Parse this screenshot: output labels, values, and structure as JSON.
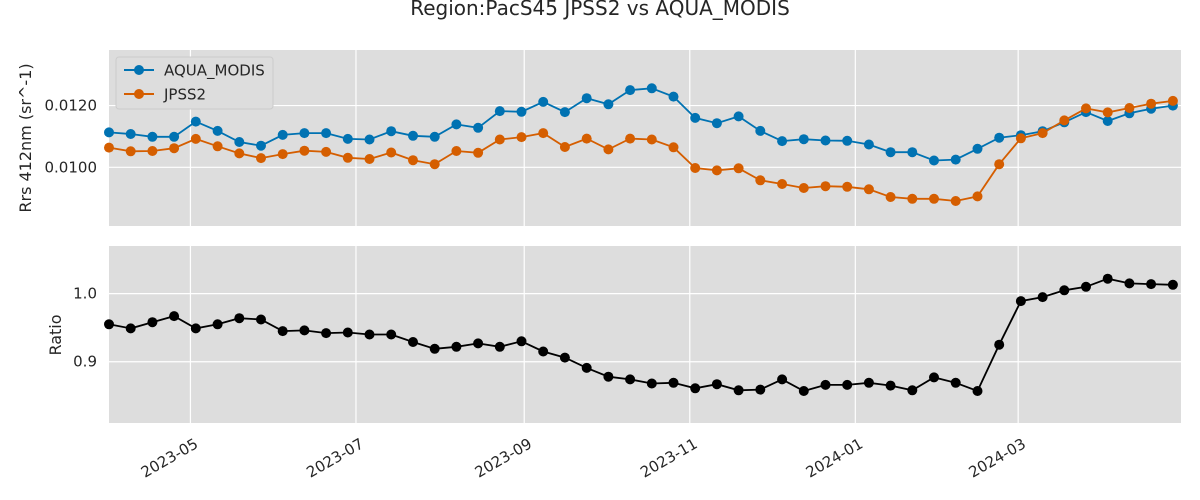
{
  "chart_data": [
    {
      "type": "line",
      "title": "Region:PacS45 JPSS2 vs AQUA_MODIS",
      "ylabel": "Rrs 412nm (sr^-1)",
      "xlabel": "",
      "xlim": [
        "2023-04-01",
        "2024-04-30"
      ],
      "ylim": [
        0.0081,
        0.0138
      ],
      "yticks": [
        0.01,
        0.012
      ],
      "ytick_labels": [
        "0.0100",
        "0.0120"
      ],
      "grid": true,
      "legend": "top-left",
      "x": [
        "2023-04-01",
        "2023-04-09",
        "2023-04-17",
        "2023-04-25",
        "2023-05-03",
        "2023-05-11",
        "2023-05-19",
        "2023-05-27",
        "2023-06-04",
        "2023-06-12",
        "2023-06-20",
        "2023-06-28",
        "2023-07-06",
        "2023-07-14",
        "2023-07-22",
        "2023-07-30",
        "2023-08-07",
        "2023-08-15",
        "2023-08-23",
        "2023-08-31",
        "2023-09-08",
        "2023-09-16",
        "2023-09-24",
        "2023-10-02",
        "2023-10-10",
        "2023-10-18",
        "2023-10-26",
        "2023-11-03",
        "2023-11-11",
        "2023-11-19",
        "2023-11-27",
        "2023-12-05",
        "2023-12-13",
        "2023-12-21",
        "2023-12-29",
        "2024-01-06",
        "2024-01-14",
        "2024-01-22",
        "2024-01-30",
        "2024-02-07",
        "2024-02-15",
        "2024-02-23",
        "2024-03-02",
        "2024-03-10",
        "2024-03-18",
        "2024-03-26",
        "2024-04-03",
        "2024-04-11",
        "2024-04-19",
        "2024-04-27"
      ],
      "series": [
        {
          "name": "AQUA_MODIS",
          "color": "#0072b2",
          "values": [
            0.01113,
            0.01108,
            0.01099,
            0.01099,
            0.01148,
            0.01118,
            0.01082,
            0.0107,
            0.01105,
            0.01111,
            0.01111,
            0.01092,
            0.0109,
            0.01117,
            0.01102,
            0.01099,
            0.01139,
            0.01128,
            0.01182,
            0.0118,
            0.01212,
            0.01179,
            0.01224,
            0.01204,
            0.0125,
            0.01256,
            0.01229,
            0.0116,
            0.01143,
            0.01165,
            0.01118,
            0.01085,
            0.01091,
            0.01087,
            0.01086,
            0.01074,
            0.01049,
            0.01049,
            0.01022,
            0.01025,
            0.0106,
            0.01096,
            0.01104,
            0.01117,
            0.01146,
            0.01179,
            0.0115,
            0.01175,
            0.0119,
            0.012
          ]
        },
        {
          "name": "JPSS2",
          "color": "#d55e00",
          "values": [
            0.01064,
            0.01052,
            0.01053,
            0.01062,
            0.01092,
            0.01068,
            0.01045,
            0.0103,
            0.01043,
            0.01054,
            0.0105,
            0.01031,
            0.01027,
            0.01048,
            0.01023,
            0.0101,
            0.01053,
            0.01047,
            0.0109,
            0.01098,
            0.01111,
            0.01066,
            0.01093,
            0.01058,
            0.01093,
            0.0109,
            0.01065,
            0.00998,
            0.0099,
            0.00997,
            0.00958,
            0.00946,
            0.00933,
            0.00939,
            0.00937,
            0.00929,
            0.00904,
            0.00898,
            0.00898,
            0.00891,
            0.00906,
            0.0101,
            0.01094,
            0.01111,
            0.01152,
            0.01191,
            0.01178,
            0.01192,
            0.01206,
            0.01215
          ]
        }
      ]
    },
    {
      "type": "line",
      "title": "",
      "ylabel": "Ratio",
      "xlabel": "",
      "xlim": [
        "2023-04-01",
        "2024-04-30"
      ],
      "ylim": [
        0.81,
        1.07
      ],
      "yticks": [
        0.9,
        1.0
      ],
      "ytick_labels": [
        "0.9",
        "1.0"
      ],
      "xticks": [
        "2023-05-01",
        "2023-07-01",
        "2023-09-01",
        "2023-11-01",
        "2024-01-01",
        "2024-03-01"
      ],
      "xtick_labels": [
        "2023-05",
        "2023-07",
        "2023-09",
        "2023-11",
        "2024-01",
        "2024-03"
      ],
      "grid": true,
      "x": [
        "2023-04-01",
        "2023-04-09",
        "2023-04-17",
        "2023-04-25",
        "2023-05-03",
        "2023-05-11",
        "2023-05-19",
        "2023-05-27",
        "2023-06-04",
        "2023-06-12",
        "2023-06-20",
        "2023-06-28",
        "2023-07-06",
        "2023-07-14",
        "2023-07-22",
        "2023-07-30",
        "2023-08-07",
        "2023-08-15",
        "2023-08-23",
        "2023-08-31",
        "2023-09-08",
        "2023-09-16",
        "2023-09-24",
        "2023-10-02",
        "2023-10-10",
        "2023-10-18",
        "2023-10-26",
        "2023-11-03",
        "2023-11-11",
        "2023-11-19",
        "2023-11-27",
        "2023-12-05",
        "2023-12-13",
        "2023-12-21",
        "2023-12-29",
        "2024-01-06",
        "2024-01-14",
        "2024-01-22",
        "2024-01-30",
        "2024-02-07",
        "2024-02-15",
        "2024-02-23",
        "2024-03-02",
        "2024-03-10",
        "2024-03-18",
        "2024-03-26",
        "2024-04-03",
        "2024-04-11",
        "2024-04-19",
        "2024-04-27"
      ],
      "series": [
        {
          "color": "#000000",
          "values": [
            0.955,
            0.949,
            0.958,
            0.967,
            0.949,
            0.955,
            0.964,
            0.962,
            0.945,
            0.946,
            0.942,
            0.943,
            0.94,
            0.94,
            0.929,
            0.919,
            0.922,
            0.927,
            0.922,
            0.93,
            0.915,
            0.906,
            0.891,
            0.878,
            0.874,
            0.868,
            0.869,
            0.861,
            0.867,
            0.858,
            0.859,
            0.874,
            0.857,
            0.866,
            0.866,
            0.869,
            0.865,
            0.858,
            0.877,
            0.869,
            0.857,
            0.925,
            0.989,
            0.995,
            1.005,
            1.01,
            1.022,
            1.015,
            1.014,
            1.013
          ]
        }
      ]
    }
  ]
}
